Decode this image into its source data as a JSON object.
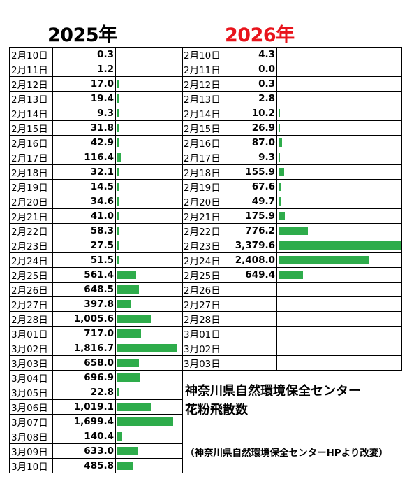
{
  "chart_data": {
    "type": "table",
    "colors": {
      "bar": "#2eac4b",
      "year_2025": "#000000",
      "year_2026": "#e8141c"
    },
    "panels": [
      {
        "title": "2025年",
        "max_value": 1816.7,
        "rows": [
          {
            "date": "2月10日",
            "value": 0.3,
            "label": "0.3"
          },
          {
            "date": "2月11日",
            "value": 1.2,
            "label": "1.2"
          },
          {
            "date": "2月12日",
            "value": 17.0,
            "label": "17.0"
          },
          {
            "date": "2月13日",
            "value": 19.4,
            "label": "19.4"
          },
          {
            "date": "2月14日",
            "value": 9.3,
            "label": "9.3"
          },
          {
            "date": "2月15日",
            "value": 31.8,
            "label": "31.8"
          },
          {
            "date": "2月16日",
            "value": 42.9,
            "label": "42.9"
          },
          {
            "date": "2月17日",
            "value": 116.4,
            "label": "116.4"
          },
          {
            "date": "2月18日",
            "value": 32.1,
            "label": "32.1"
          },
          {
            "date": "2月19日",
            "value": 14.5,
            "label": "14.5"
          },
          {
            "date": "2月20日",
            "value": 34.6,
            "label": "34.6"
          },
          {
            "date": "2月21日",
            "value": 41.0,
            "label": "41.0"
          },
          {
            "date": "2月22日",
            "value": 58.3,
            "label": "58.3"
          },
          {
            "date": "2月23日",
            "value": 27.5,
            "label": "27.5"
          },
          {
            "date": "2月24日",
            "value": 51.5,
            "label": "51.5"
          },
          {
            "date": "2月25日",
            "value": 561.4,
            "label": "561.4"
          },
          {
            "date": "2月26日",
            "value": 648.5,
            "label": "648.5"
          },
          {
            "date": "2月27日",
            "value": 397.8,
            "label": "397.8"
          },
          {
            "date": "2月28日",
            "value": 1005.6,
            "label": "1,005.6"
          },
          {
            "date": "3月01日",
            "value": 717.0,
            "label": "717.0"
          },
          {
            "date": "3月02日",
            "value": 1816.7,
            "label": "1,816.7"
          },
          {
            "date": "3月03日",
            "value": 658.0,
            "label": "658.0"
          },
          {
            "date": "3月04日",
            "value": 696.9,
            "label": "696.9"
          },
          {
            "date": "3月05日",
            "value": 22.8,
            "label": "22.8"
          },
          {
            "date": "3月06日",
            "value": 1019.1,
            "label": "1,019.1"
          },
          {
            "date": "3月07日",
            "value": 1699.4,
            "label": "1,699.4"
          },
          {
            "date": "3月08日",
            "value": 140.4,
            "label": "140.4"
          },
          {
            "date": "3月09日",
            "value": 633.0,
            "label": "633.0"
          },
          {
            "date": "3月10日",
            "value": 485.8,
            "label": "485.8"
          }
        ]
      },
      {
        "title": "2026年",
        "max_value": 3379.6,
        "rows": [
          {
            "date": "2月10日",
            "value": 4.3,
            "label": "4.3"
          },
          {
            "date": "2月11日",
            "value": 0.0,
            "label": "0.0"
          },
          {
            "date": "2月12日",
            "value": 0.3,
            "label": "0.3"
          },
          {
            "date": "2月13日",
            "value": 2.8,
            "label": "2.8"
          },
          {
            "date": "2月14日",
            "value": 10.2,
            "label": "10.2"
          },
          {
            "date": "2月15日",
            "value": 26.9,
            "label": "26.9"
          },
          {
            "date": "2月16日",
            "value": 87.0,
            "label": "87.0"
          },
          {
            "date": "2月17日",
            "value": 9.3,
            "label": "9.3"
          },
          {
            "date": "2月18日",
            "value": 155.9,
            "label": "155.9"
          },
          {
            "date": "2月19日",
            "value": 67.6,
            "label": "67.6"
          },
          {
            "date": "2月20日",
            "value": 49.7,
            "label": "49.7"
          },
          {
            "date": "2月21日",
            "value": 175.9,
            "label": "175.9"
          },
          {
            "date": "2月22日",
            "value": 776.2,
            "label": "776.2"
          },
          {
            "date": "2月23日",
            "value": 3379.6,
            "label": "3,379.6"
          },
          {
            "date": "2月24日",
            "value": 2408.0,
            "label": "2,408.0"
          },
          {
            "date": "2月25日",
            "value": 649.4,
            "label": "649.4"
          },
          {
            "date": "2月26日",
            "value": null,
            "label": ""
          },
          {
            "date": "2月27日",
            "value": null,
            "label": ""
          },
          {
            "date": "2月28日",
            "value": null,
            "label": ""
          },
          {
            "date": "3月01日",
            "value": null,
            "label": ""
          },
          {
            "date": "3月02日",
            "value": null,
            "label": ""
          },
          {
            "date": "3月03日",
            "value": null,
            "label": ""
          }
        ]
      }
    ]
  },
  "caption": {
    "line1": "神奈川県自然環境保全センター",
    "line2": "花粉飛散数",
    "source": "（神奈川県自然環境保全センターHPより改変）"
  }
}
